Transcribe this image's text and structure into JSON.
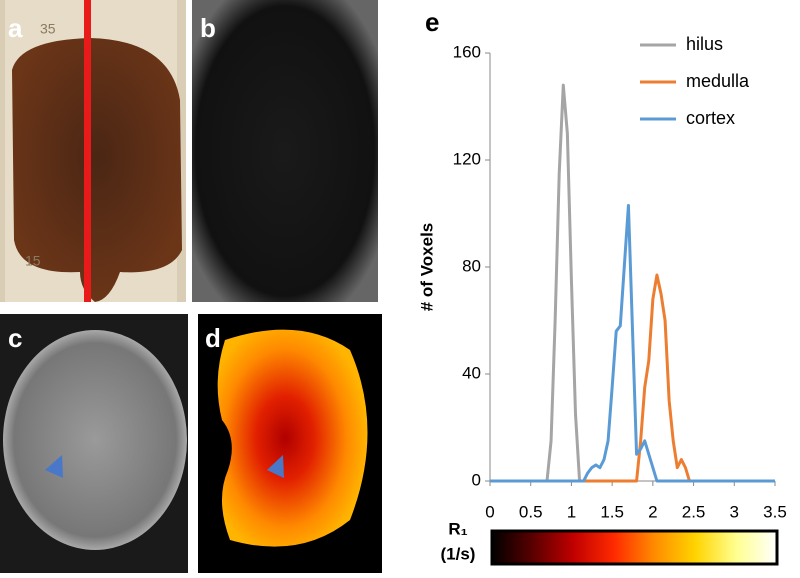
{
  "panels": [
    {
      "label": "a",
      "texts": [
        "35",
        "15"
      ]
    },
    {
      "label": "b"
    },
    {
      "label": "c"
    },
    {
      "label": "d"
    }
  ],
  "chart_data": {
    "type": "line",
    "label": "e",
    "ylabel": "# of Voxels",
    "xlim": [
      0,
      3.5
    ],
    "xticks": [
      0,
      0.5,
      1,
      1.5,
      2,
      2.5,
      3,
      3.5
    ],
    "ylim": [
      0,
      160
    ],
    "yticks": [
      0,
      40,
      80,
      120,
      160
    ],
    "legend": "upper right",
    "series": [
      {
        "name": "hilus",
        "color": "#a5a5a5",
        "x": [
          0.7,
          0.75,
          0.8,
          0.85,
          0.9,
          0.95,
          1.0,
          1.05,
          1.1
        ],
        "values": [
          0,
          15,
          60,
          115,
          148,
          130,
          75,
          25,
          0
        ]
      },
      {
        "name": "medulla",
        "color": "#ed7d31",
        "x": [
          1.1,
          1.8,
          1.85,
          1.9,
          1.95,
          2.0,
          2.05,
          2.1,
          2.15,
          2.2,
          2.25,
          2.3,
          2.35,
          2.4,
          2.45
        ],
        "values": [
          0,
          0,
          15,
          35,
          45,
          68,
          77,
          70,
          60,
          30,
          15,
          5,
          8,
          5,
          0
        ]
      },
      {
        "name": "cortex",
        "color": "#5b9bd5",
        "x": [
          0,
          1.15,
          1.2,
          1.25,
          1.3,
          1.35,
          1.4,
          1.45,
          1.5,
          1.55,
          1.6,
          1.7,
          1.8,
          1.85,
          1.9,
          1.95,
          2.05,
          3.5
        ],
        "values": [
          0,
          0,
          3,
          5,
          6,
          5,
          8,
          15,
          35,
          56,
          58,
          103,
          10,
          12,
          15,
          10,
          0,
          0
        ]
      }
    ],
    "colorbar": {
      "label": "R₁",
      "unit": "(1/s)",
      "colors": [
        "#000000",
        "#5a0000",
        "#c00000",
        "#ff2a00",
        "#ff8c00",
        "#ffd400",
        "#ffff90",
        "#ffffff"
      ]
    }
  }
}
